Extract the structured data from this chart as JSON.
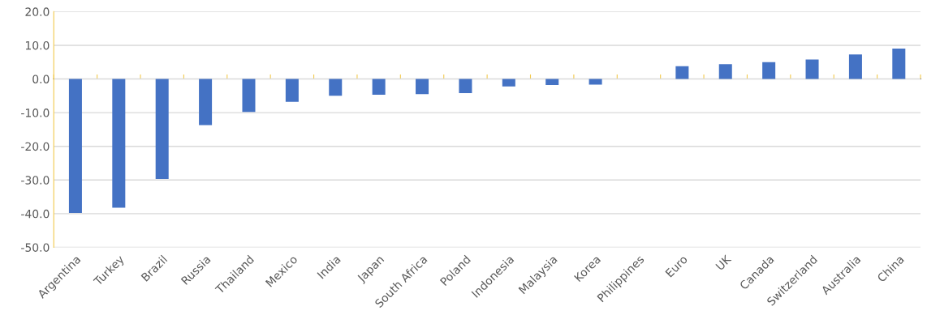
{
  "chart_data": {
    "type": "bar",
    "categories": [
      "Argentina",
      "Turkey",
      "Brazil",
      "Russia",
      "Thailand",
      "Mexico",
      "India",
      "Japan",
      "South Africa",
      "Poland",
      "Indonesia",
      "Malaysia",
      "Korea",
      "Philippines",
      "Euro",
      "UK",
      "Canada",
      "Switzerland",
      "Australia",
      "China"
    ],
    "values": [
      -39.8,
      -38.2,
      -29.7,
      -13.7,
      -9.8,
      -6.8,
      -5.0,
      -4.7,
      -4.5,
      -4.2,
      -2.2,
      -1.8,
      -1.7,
      null,
      3.8,
      4.4,
      5.0,
      5.8,
      7.3,
      9.0
    ],
    "color": "#4472c4",
    "ylim": [
      -50,
      20
    ],
    "yticks": [
      {
        "value": -50,
        "label": "-50.0"
      },
      {
        "value": -40,
        "label": "-40.0"
      },
      {
        "value": -30,
        "label": "-30.0"
      },
      {
        "value": -20,
        "label": "-20.0"
      },
      {
        "value": -10,
        "label": "-10.0"
      },
      {
        "value": 0,
        "label": "0.0"
      },
      {
        "value": 10,
        "label": "10.0"
      },
      {
        "value": 20,
        "label": "20.0"
      }
    ],
    "grid": "y",
    "legend": false
  }
}
